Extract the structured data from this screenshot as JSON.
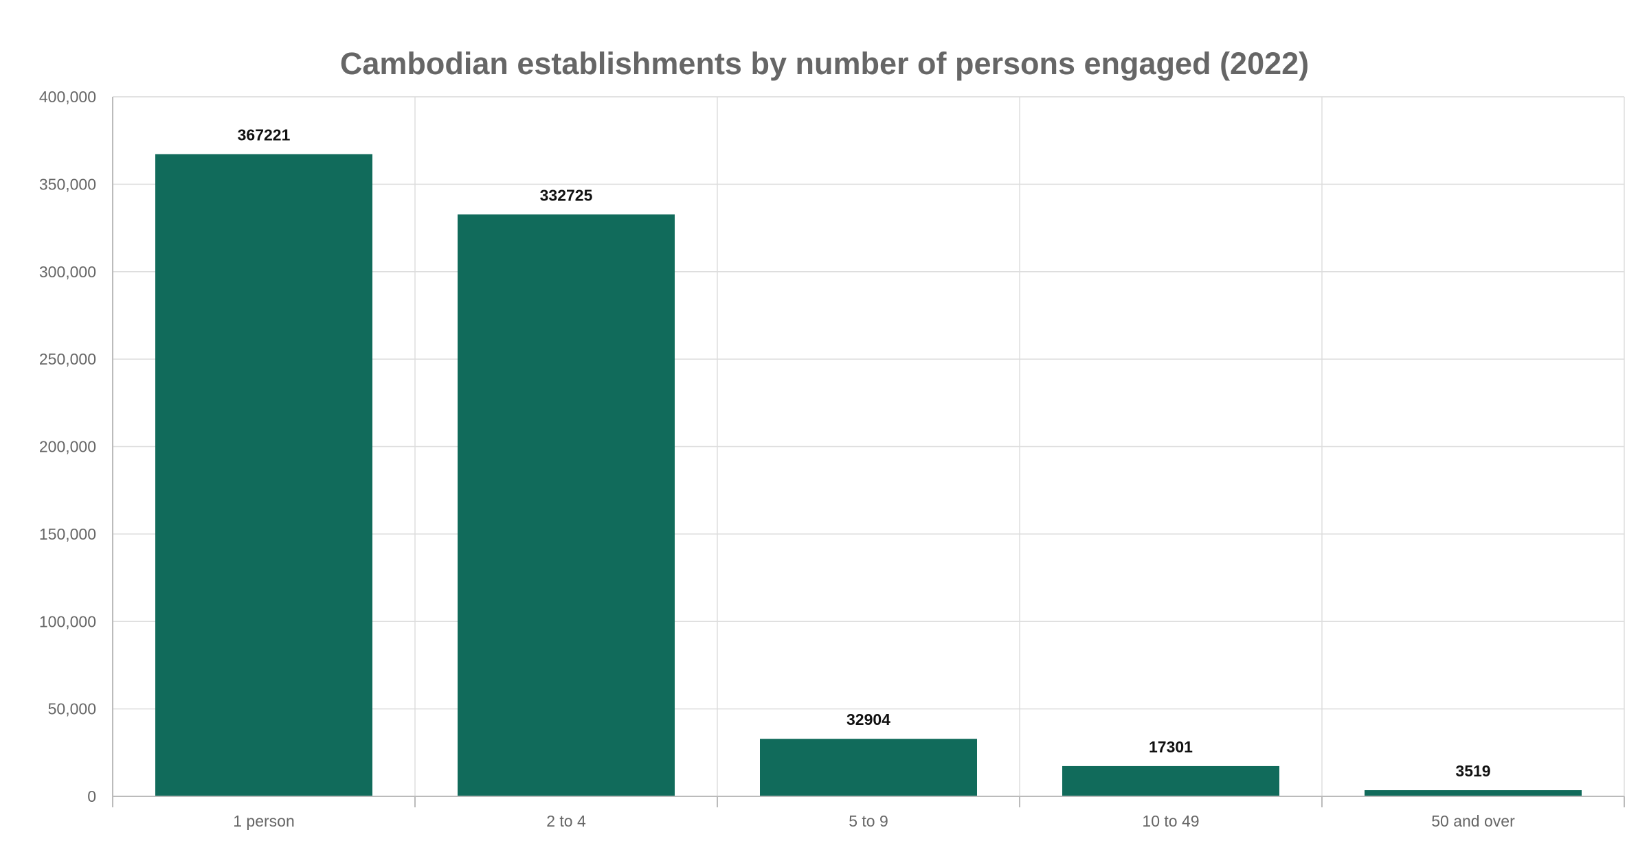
{
  "chart_data": {
    "type": "bar",
    "title": "Cambodian establishments by number of persons engaged (2022)",
    "xlabel": "",
    "ylabel": "",
    "categories": [
      "1 person",
      "2 to 4",
      "5 to 9",
      "10 to 49",
      "50 and over"
    ],
    "values": [
      367221,
      332725,
      32904,
      17301,
      3519
    ],
    "data_labels": [
      "367221",
      "332725",
      "32904",
      "17301",
      "3519"
    ],
    "ylim": [
      0,
      400000
    ],
    "yticks": [
      0,
      50000,
      100000,
      150000,
      200000,
      250000,
      300000,
      350000,
      400000
    ],
    "ytick_labels": [
      "0",
      "50,000",
      "100,000",
      "150,000",
      "200,000",
      "250,000",
      "300,000",
      "350,000",
      "400,000"
    ],
    "grid": true,
    "legend": "none",
    "bar_color": "#116b5b"
  }
}
